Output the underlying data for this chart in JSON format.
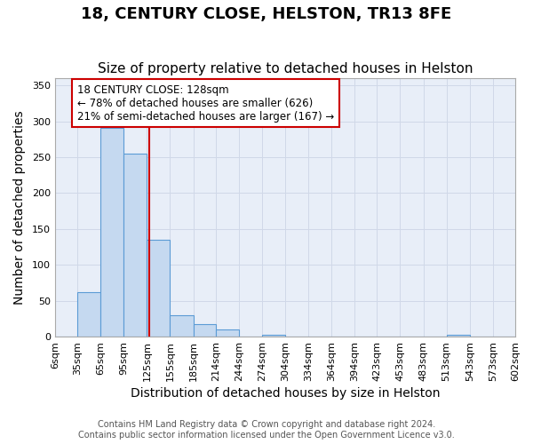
{
  "title": "18, CENTURY CLOSE, HELSTON, TR13 8FE",
  "subtitle": "Size of property relative to detached houses in Helston",
  "xlabel": "Distribution of detached houses by size in Helston",
  "ylabel": "Number of detached properties",
  "footer_line1": "Contains HM Land Registry data © Crown copyright and database right 2024.",
  "footer_line2": "Contains public sector information licensed under the Open Government Licence v3.0.",
  "bin_edges": [
    6,
    35,
    65,
    95,
    125,
    155,
    185,
    214,
    244,
    274,
    304,
    334,
    364,
    394,
    423,
    453,
    483,
    513,
    543,
    573,
    602
  ],
  "bar_heights": [
    0,
    62,
    291,
    255,
    135,
    30,
    17,
    10,
    0,
    3,
    0,
    0,
    0,
    0,
    0,
    0,
    0,
    2,
    0,
    0
  ],
  "bar_color": "#c5d9f0",
  "bar_edge_color": "#5b9bd5",
  "property_size": 128,
  "vline_color": "#cc0000",
  "annotation_text": "18 CENTURY CLOSE: 128sqm\n← 78% of detached houses are smaller (626)\n21% of semi-detached houses are larger (167) →",
  "annotation_box_color": "#ffffff",
  "annotation_box_edge_color": "#cc0000",
  "ylim": [
    0,
    360
  ],
  "yticks": [
    0,
    50,
    100,
    150,
    200,
    250,
    300,
    350
  ],
  "grid_color": "#d0d8e8",
  "plot_background_color": "#e8eef8",
  "figure_background_color": "#ffffff",
  "tick_labels": [
    "6sqm",
    "35sqm",
    "65sqm",
    "95sqm",
    "125sqm",
    "155sqm",
    "185sqm",
    "214sqm",
    "244sqm",
    "274sqm",
    "304sqm",
    "334sqm",
    "364sqm",
    "394sqm",
    "423sqm",
    "453sqm",
    "483sqm",
    "513sqm",
    "543sqm",
    "573sqm",
    "602sqm"
  ],
  "title_fontsize": 13,
  "subtitle_fontsize": 11,
  "label_fontsize": 10,
  "tick_fontsize": 8,
  "annotation_fontsize": 8.5
}
